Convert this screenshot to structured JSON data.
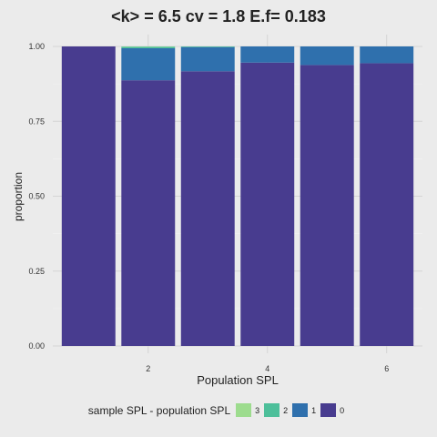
{
  "chart_data": {
    "type": "bar",
    "stacked": true,
    "title": "<k> = 6.5 cv = 1.8 E.f= 0.183",
    "xlabel": "Population SPL",
    "ylabel": "proportion",
    "x": [
      1,
      2,
      3,
      4,
      5,
      6
    ],
    "x_ticks": [
      "2",
      "4",
      "6"
    ],
    "y_ticks": [
      "0.00",
      "0.25",
      "0.50",
      "0.75",
      "1.00"
    ],
    "ylim": [
      0,
      1
    ],
    "grid": true,
    "legend": {
      "title": "sample SPL - population SPL",
      "placement": "bottom",
      "entries": [
        "3",
        "2",
        "1",
        "0"
      ]
    },
    "series": [
      {
        "name": "0",
        "color": "#483c8f",
        "values": [
          1.0,
          0.887,
          0.917,
          0.946,
          0.938,
          0.944
        ]
      },
      {
        "name": "1",
        "color": "#2f70ad",
        "values": [
          0.0,
          0.107,
          0.081,
          0.054,
          0.062,
          0.056
        ]
      },
      {
        "name": "2",
        "color": "#4dbf9a",
        "values": [
          0.0,
          0.005,
          0.002,
          0.0,
          0.0,
          0.0
        ]
      },
      {
        "name": "3",
        "color": "#9ddc8e",
        "values": [
          0.0,
          0.001,
          0.0,
          0.0,
          0.0,
          0.0
        ]
      }
    ]
  }
}
